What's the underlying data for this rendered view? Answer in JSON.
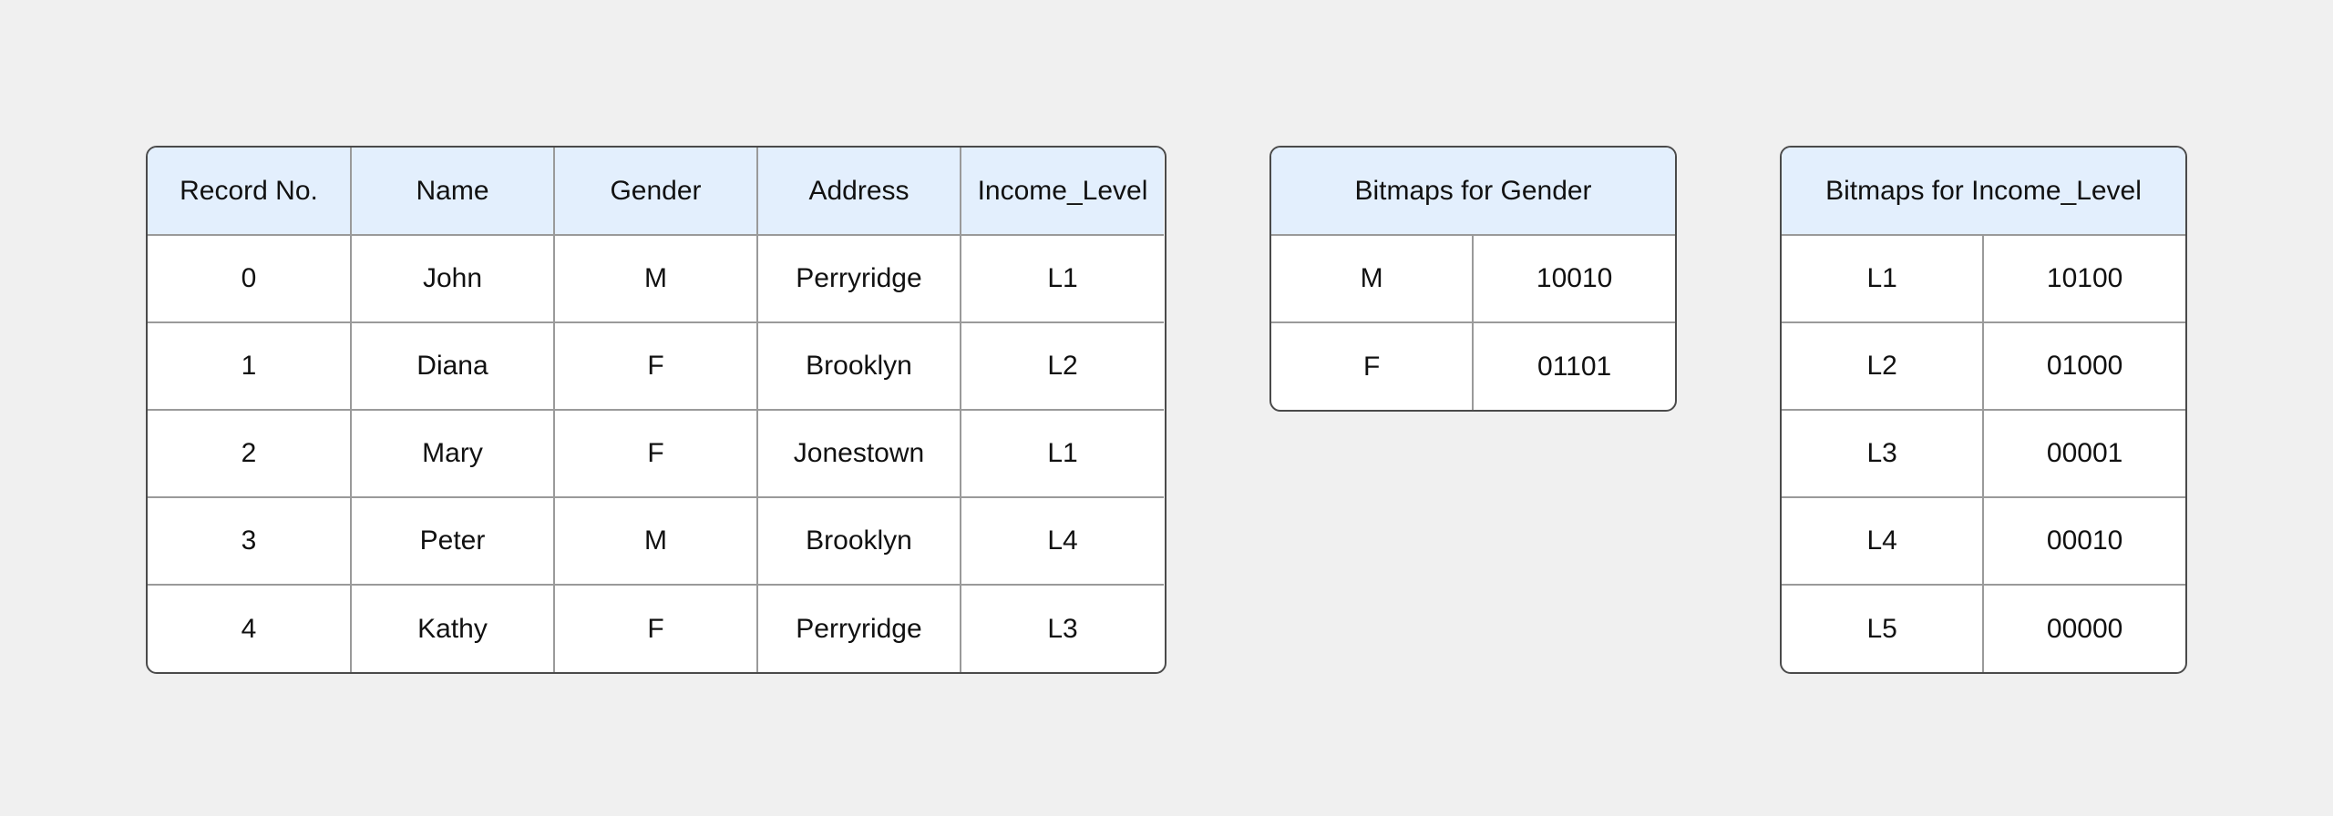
{
  "records_table": {
    "headers": [
      "Record No.",
      "Name",
      "Gender",
      "Address",
      "Income_Level"
    ],
    "rows": [
      [
        "0",
        "John",
        "M",
        "Perryridge",
        "L1"
      ],
      [
        "1",
        "Diana",
        "F",
        "Brooklyn",
        "L2"
      ],
      [
        "2",
        "Mary",
        "F",
        "Jonestown",
        "L1"
      ],
      [
        "3",
        "Peter",
        "M",
        "Brooklyn",
        "L4"
      ],
      [
        "4",
        "Kathy",
        "F",
        "Perryridge",
        "L3"
      ]
    ]
  },
  "gender_bitmaps": {
    "title": "Bitmaps for Gender",
    "rows": [
      [
        "M",
        "10010"
      ],
      [
        "F",
        "01101"
      ]
    ]
  },
  "income_bitmaps": {
    "title": "Bitmaps for Income_Level",
    "rows": [
      [
        "L1",
        "10100"
      ],
      [
        "L2",
        "01000"
      ],
      [
        "L3",
        "00001"
      ],
      [
        "L4",
        "00010"
      ],
      [
        "L5",
        "00000"
      ]
    ]
  },
  "colors": {
    "header_bg": "#e3effd",
    "background": "#f0f0f0"
  }
}
